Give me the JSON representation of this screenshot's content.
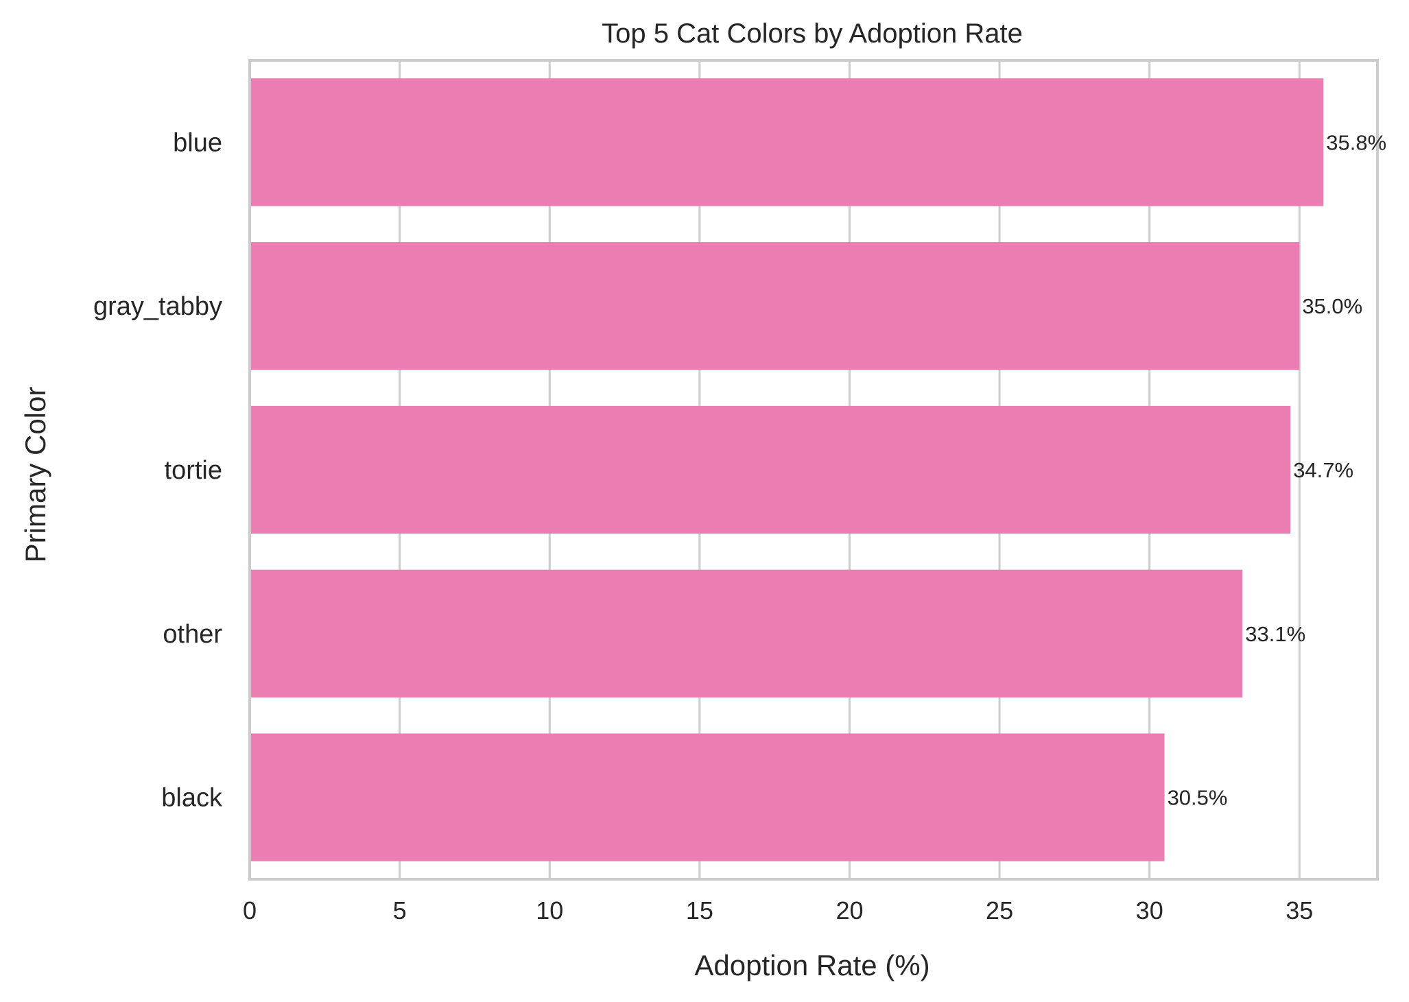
{
  "chart_data": {
    "type": "bar",
    "orientation": "horizontal",
    "title": "Top 5 Cat Colors by Adoption Rate",
    "xlabel": "Adoption Rate (%)",
    "ylabel": "Primary Color",
    "categories": [
      "blue",
      "gray_tabby",
      "tortie",
      "other",
      "black"
    ],
    "values": [
      35.8,
      35.0,
      34.7,
      33.1,
      30.5
    ],
    "data_labels": [
      "35.8%",
      "35.0%",
      "34.7%",
      "33.1%",
      "30.5%"
    ],
    "xlim": [
      0,
      37.6
    ],
    "xticks": [
      0,
      5,
      10,
      15,
      20,
      25,
      30,
      35
    ],
    "xtick_labels": [
      "0",
      "5",
      "10",
      "15",
      "20",
      "25",
      "30",
      "35"
    ],
    "grid": true,
    "colors": {
      "bar": "#ec7db3",
      "grid": "#cccccc",
      "spine": "#cccccc",
      "text": "#262626",
      "background": "#ffffff"
    }
  }
}
